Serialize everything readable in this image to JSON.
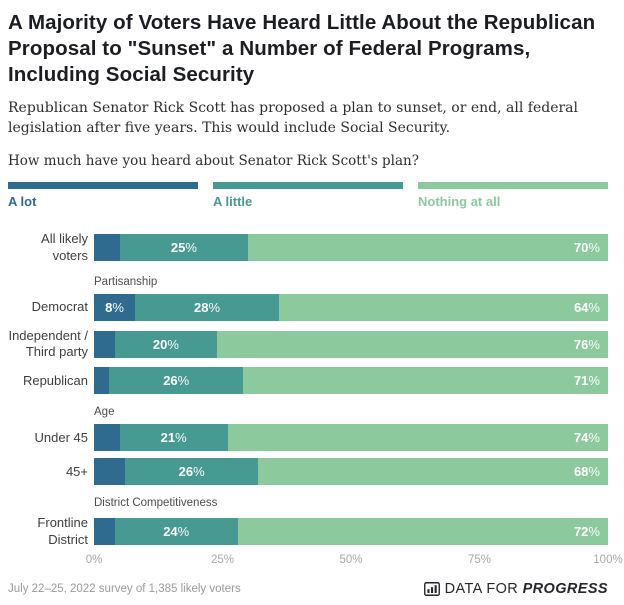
{
  "header": {
    "title": "A Majority of Voters Have Heard Little About the Republican Proposal to \"Sunset\" a Number of Federal Programs, Including Social Security",
    "subtitle": "Republican Senator Rick Scott has proposed a plan to sunset, or end, all federal legislation after five years. This would include Social Security.",
    "question": "How much have you heard about Senator Rick Scott's plan?"
  },
  "chart_data": {
    "type": "bar",
    "variant": "horizontal_stacked",
    "xlim": [
      0,
      100
    ],
    "x_ticks": [
      "0%",
      "25%",
      "50%",
      "75%",
      "100%"
    ],
    "legend_position": "top",
    "series": [
      {
        "name": "A lot",
        "color": "#2e6b8e"
      },
      {
        "name": "A little",
        "color": "#479a91"
      },
      {
        "name": "Nothing at all",
        "color": "#8cca9e"
      }
    ],
    "groups": [
      {
        "section": "",
        "rows": [
          {
            "label": "All likely voters",
            "values": [
              5,
              25,
              70
            ],
            "show_labels": [
              false,
              true,
              true
            ]
          }
        ]
      },
      {
        "section": "Partisanship",
        "rows": [
          {
            "label": "Democrat",
            "values": [
              8,
              28,
              64
            ],
            "show_labels": [
              true,
              true,
              true
            ]
          },
          {
            "label": "Independent / Third party",
            "values": [
              4,
              20,
              76
            ],
            "show_labels": [
              false,
              true,
              true
            ]
          },
          {
            "label": "Republican",
            "values": [
              3,
              26,
              71
            ],
            "show_labels": [
              false,
              true,
              true
            ]
          }
        ]
      },
      {
        "section": "Age",
        "rows": [
          {
            "label": "Under 45",
            "values": [
              5,
              21,
              74
            ],
            "show_labels": [
              false,
              true,
              true
            ]
          },
          {
            "label": "45+",
            "values": [
              6,
              26,
              68
            ],
            "show_labels": [
              false,
              true,
              true
            ]
          }
        ]
      },
      {
        "section": "District Competitiveness",
        "rows": [
          {
            "label": "Frontline District",
            "values": [
              4,
              24,
              72
            ],
            "show_labels": [
              false,
              true,
              true
            ]
          }
        ]
      }
    ]
  },
  "footer": {
    "source_note": "July 22–25, 2022 survey of 1,385 likely voters",
    "logo": {
      "prefix": "DATA FOR",
      "suffix": "PROGRESS"
    }
  }
}
